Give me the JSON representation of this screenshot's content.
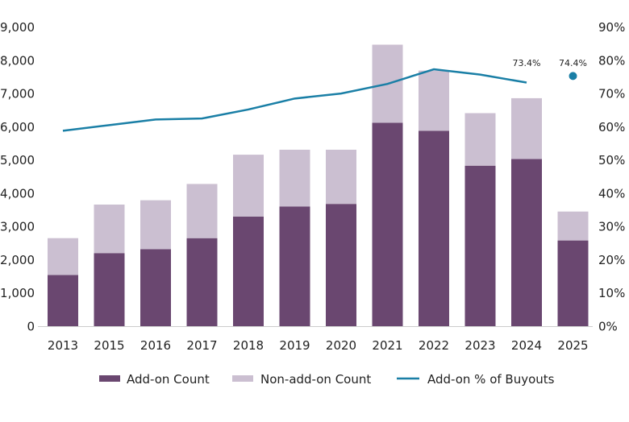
{
  "chart_data": {
    "type": "bar",
    "stacked": true,
    "categories": [
      "2013",
      "2015",
      "2016",
      "2017",
      "2018",
      "2019",
      "2020",
      "2021",
      "2022",
      "2023",
      "2024",
      "2025"
    ],
    "series": [
      {
        "name": "Add-on Count",
        "type": "bar",
        "color": "#6a4770",
        "axis": "left",
        "values": [
          1550,
          2210,
          2330,
          2660,
          3310,
          3610,
          3690,
          6130,
          5890,
          4840,
          5040,
          2590
        ]
      },
      {
        "name": "Non-add-on Count",
        "type": "bar",
        "color": "#cbbfd1",
        "axis": "left",
        "values": [
          1110,
          1460,
          1470,
          1630,
          1860,
          1710,
          1630,
          2350,
          1810,
          1580,
          1830,
          870
        ]
      },
      {
        "name": "Add-on % of Buyouts",
        "type": "line",
        "color": "#1a7fa6",
        "axis": "right",
        "values": [
          58.9,
          60.6,
          62.3,
          62.6,
          65.3,
          68.6,
          70.1,
          73.0,
          77.4,
          75.8,
          73.4,
          74.4
        ],
        "point_only_last": true
      }
    ],
    "data_labels": [
      {
        "category": "2024",
        "text": "73.4%"
      },
      {
        "category": "2025",
        "text": "74.4%"
      }
    ],
    "left_axis": {
      "ylim": [
        0,
        9000
      ],
      "ticks": [
        "0",
        "1,000",
        "2,000",
        "3,000",
        "4,000",
        "5,000",
        "6,000",
        "7,000",
        "8,000",
        "9,000"
      ]
    },
    "right_axis": {
      "ylim": [
        0,
        90
      ],
      "ticks": [
        "0%",
        "10%",
        "20%",
        "30%",
        "40%",
        "50%",
        "60%",
        "70%",
        "80%",
        "90%"
      ]
    },
    "grid": false,
    "legend": "bottom"
  }
}
